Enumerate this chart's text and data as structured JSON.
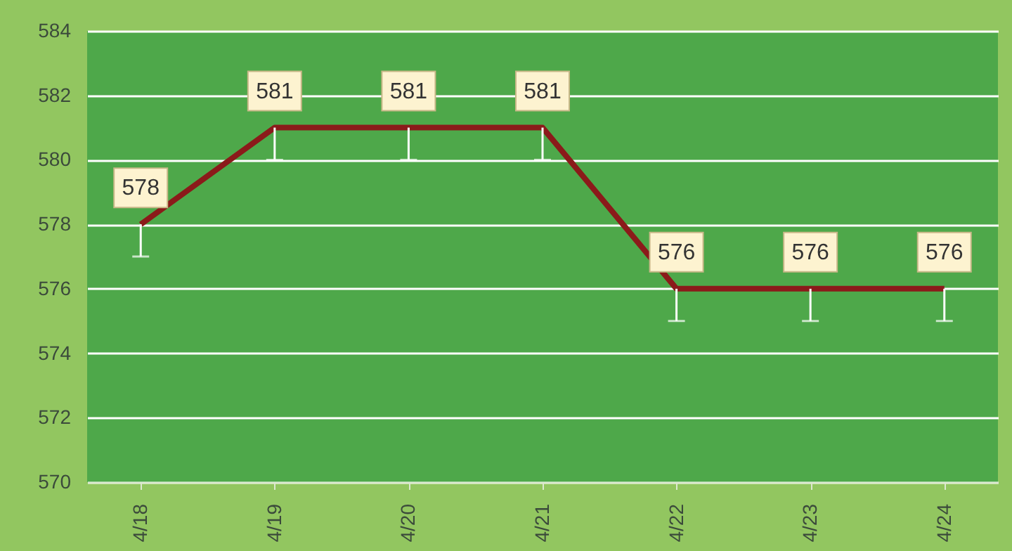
{
  "chart_data": {
    "type": "line",
    "categories": [
      "4/18",
      "4/19",
      "4/20",
      "4/21",
      "4/22",
      "4/23",
      "4/24"
    ],
    "series": [
      {
        "color": "#8b1a1a",
        "values": [
          578,
          581,
          581,
          581,
          576,
          576,
          576
        ],
        "errors": [
          [
            577,
            578
          ],
          [
            580,
            581
          ],
          [
            580,
            581
          ],
          [
            580,
            581
          ],
          [
            575,
            576
          ],
          [
            575,
            576
          ],
          [
            575,
            576
          ]
        ]
      }
    ],
    "ylim": [
      570,
      584
    ],
    "yticks": [
      570,
      572,
      574,
      576,
      578,
      580,
      582,
      584
    ],
    "grid": "y",
    "data_labels": true,
    "marker": "none",
    "line_style": "solid"
  }
}
